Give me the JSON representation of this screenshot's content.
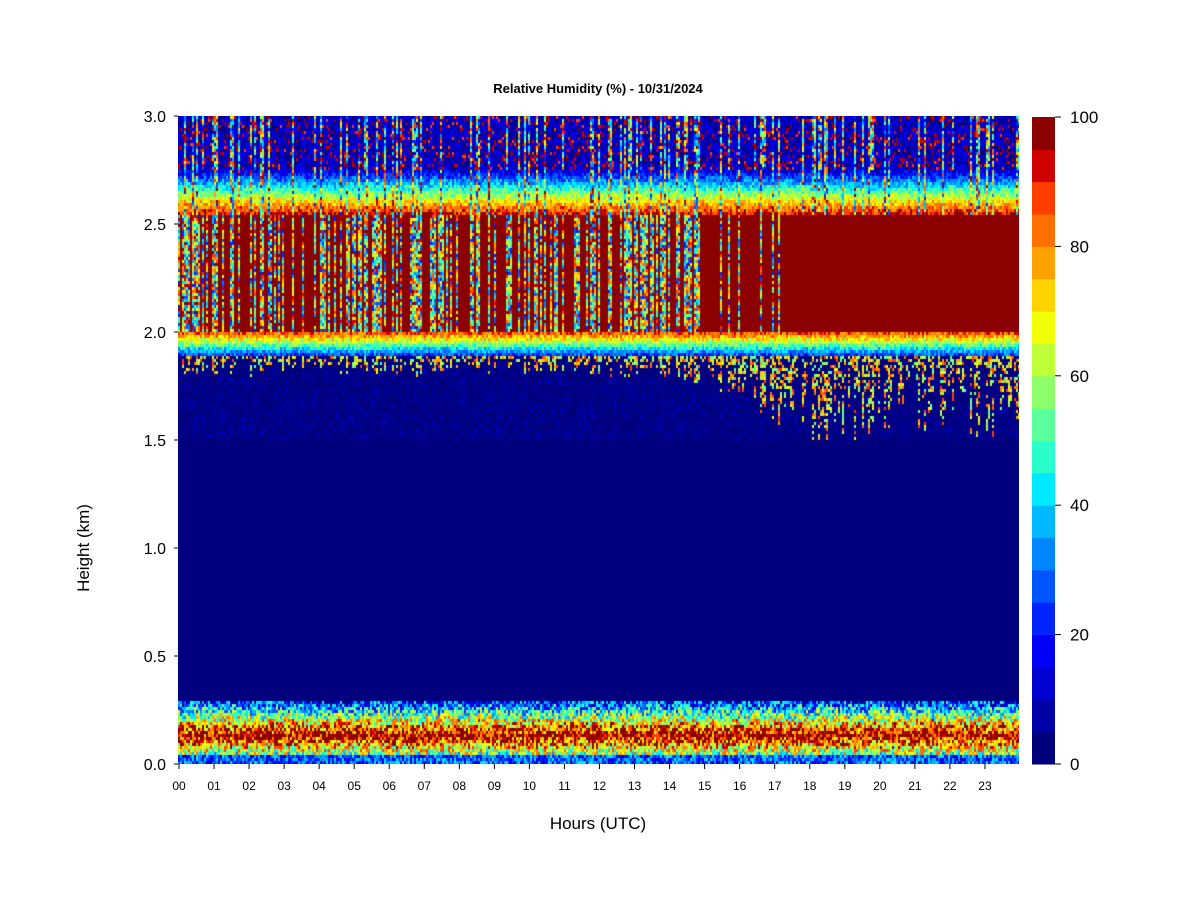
{
  "chart_data": {
    "type": "heatmap",
    "title": "Relative Humidity (%) - 10/31/2024",
    "xlabel": "Hours (UTC)",
    "ylabel": "Height (km)",
    "xlim": [
      0,
      24
    ],
    "ylim": [
      0.0,
      3.0
    ],
    "x_ticks": [
      0,
      1,
      2,
      3,
      4,
      5,
      6,
      7,
      8,
      9,
      10,
      11,
      12,
      13,
      14,
      15,
      16,
      17,
      18,
      19,
      20,
      21,
      22,
      23
    ],
    "x_tick_labels": [
      "00",
      "01",
      "02",
      "03",
      "04",
      "05",
      "06",
      "07",
      "08",
      "09",
      "10",
      "11",
      "12",
      "13",
      "14",
      "15",
      "16",
      "17",
      "18",
      "19",
      "20",
      "21",
      "22",
      "23"
    ],
    "y_ticks": [
      0.0,
      0.5,
      1.0,
      1.5,
      2.0,
      2.5,
      3.0
    ],
    "y_tick_labels": [
      "0.0",
      "0.5",
      "1.0",
      "1.5",
      "2.0",
      "2.5",
      "3.0"
    ],
    "colorbar": {
      "label": "",
      "range": [
        0,
        100
      ],
      "ticks": [
        0,
        20,
        40,
        60,
        80,
        100
      ],
      "tick_labels": [
        "0",
        "20",
        "40",
        "60",
        "80",
        "100"
      ],
      "levels": 20,
      "colors": [
        "#00007f",
        "#0000a8",
        "#0000d1",
        "#0000f9",
        "#0023ff",
        "#0055ff",
        "#0087ff",
        "#00b8ff",
        "#00eaff",
        "#2affcc",
        "#5bff9b",
        "#8dff6a",
        "#bfff38",
        "#f0ff07",
        "#ffd200",
        "#ffa200",
        "#ff7000",
        "#ff3e00",
        "#ce0000",
        "#8b0000"
      ]
    },
    "layers": [
      {
        "height_range_km": [
          0.0,
          0.05
        ],
        "relative_humidity_pct": "10-40",
        "description_of_pattern": "variable"
      },
      {
        "height_range_km": [
          0.05,
          0.3
        ],
        "relative_humidity_pct": "60-100",
        "description_of_pattern": "moist surface layer"
      },
      {
        "height_range_km": [
          0.3,
          1.9
        ],
        "relative_humidity_pct": "0-5"
      },
      {
        "height_range_km": [
          1.9,
          2.0
        ],
        "relative_humidity_pct": "30-80"
      },
      {
        "height_range_km": [
          2.0,
          2.55
        ],
        "relative_humidity_pct": "90-100"
      },
      {
        "height_range_km": [
          2.55,
          2.75
        ],
        "relative_humidity_pct": "20-70"
      },
      {
        "height_range_km": [
          2.75,
          3.0
        ],
        "relative_humidity_pct": "5-30"
      }
    ]
  }
}
